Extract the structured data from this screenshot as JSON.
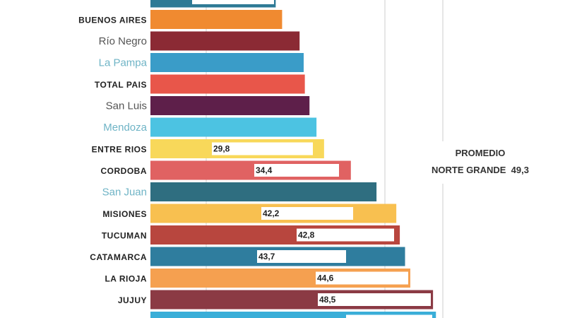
{
  "chart_data": {
    "type": "bar",
    "orientation": "horizontal",
    "categories": [
      "",
      "BUENOS AIRES",
      "Río Negro",
      "La Pampa",
      "TOTAL  PAIS",
      "San Luis",
      "Mendoza",
      "ENTRE RIOS",
      "CORDOBA",
      "San Juan",
      "MISIONES",
      "TUCUMAN",
      "CATAMARCA",
      "LA RIOJA",
      "JUJUY",
      ""
    ],
    "values": [
      21.5,
      22.6,
      25.6,
      26.3,
      26.5,
      27.3,
      28.5,
      29.8,
      34.4,
      38.8,
      42.2,
      42.8,
      43.7,
      44.6,
      48.5,
      49.0
    ],
    "data_labels": [
      "",
      "",
      "",
      "",
      "",
      "",
      "",
      "29,8",
      "34,4",
      "",
      "42,2",
      "42,8",
      "43,7",
      "44,6",
      "48,5",
      ""
    ],
    "label_style": [
      "upper",
      "upper",
      "gray",
      "teal",
      "upper",
      "gray",
      "teal",
      "upper",
      "upper",
      "teal",
      "upper",
      "upper",
      "upper",
      "upper",
      "upper",
      "upper"
    ],
    "colors": [
      "#2e7a95",
      "#f08a30",
      "#8b2a34",
      "#3a9cc8",
      "#e8564a",
      "#5e1f4a",
      "#4cc3e2",
      "#f8d85a",
      "#e06262",
      "#2f6e80",
      "#f8c050",
      "#b8463e",
      "#2f7d9e",
      "#f5a050",
      "#8b3a44",
      "#3aaed8"
    ],
    "grid": true,
    "xlabel": "",
    "ylabel": "",
    "annotation": {
      "line1": "PROMEDIO",
      "line2": "NORTE GRANDE  49,3"
    }
  }
}
